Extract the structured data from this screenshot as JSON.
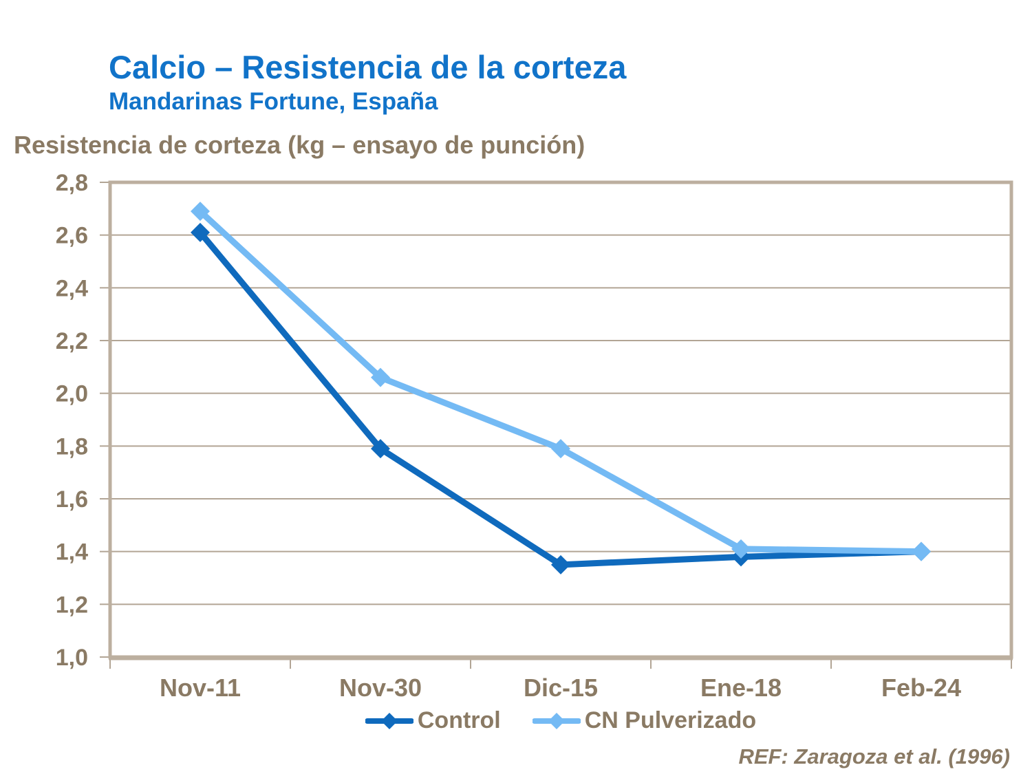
{
  "header": {
    "title": "Calcio – Resistencia de la corteza",
    "subtitle": "Mandarinas Fortune, España"
  },
  "axis_title": "Resistencia de corteza (kg – ensayo de punción)",
  "footer": {
    "ref": "REF: Zaragoza et al. (1996)"
  },
  "colors": {
    "title_blue": "#1173C9",
    "text_taupe": "#8A7A64",
    "gridline": "#B2A595",
    "plot_border": "#BCAF9F",
    "control_blue": "#0F6ABD",
    "cn_light_blue": "#74BAF4",
    "background": "#FFFFFF"
  },
  "chart_data": {
    "type": "line",
    "title": "Calcio – Resistencia de la corteza",
    "subtitle": "Mandarinas Fortune, España",
    "ylabel": "Resistencia de corteza (kg – ensayo de punción)",
    "xlabel": "",
    "categories": [
      "Nov-11",
      "Nov-30",
      "Dic-15",
      "Ene-18",
      "Feb-24"
    ],
    "series": [
      {
        "name": "Control",
        "color": "#0F6ABD",
        "marker": "diamond",
        "values": [
          2.61,
          1.79,
          1.35,
          1.38,
          1.4
        ]
      },
      {
        "name": "CN Pulverizado",
        "color": "#74BAF4",
        "marker": "diamond",
        "values": [
          2.69,
          2.06,
          1.79,
          1.41,
          1.4
        ]
      }
    ],
    "ylim": [
      1.0,
      2.8
    ],
    "y_ticks": [
      {
        "v": 1.0,
        "label": "1,0"
      },
      {
        "v": 1.2,
        "label": "1,2"
      },
      {
        "v": 1.4,
        "label": "1,4"
      },
      {
        "v": 1.6,
        "label": "1,6"
      },
      {
        "v": 1.8,
        "label": "1,8"
      },
      {
        "v": 2.0,
        "label": "2,0"
      },
      {
        "v": 2.2,
        "label": "2,2"
      },
      {
        "v": 2.4,
        "label": "2,4"
      },
      {
        "v": 2.6,
        "label": "2,6"
      },
      {
        "v": 2.8,
        "label": "2,8"
      }
    ],
    "grid": true,
    "legend_position": "bottom",
    "decimal_separator": ","
  }
}
